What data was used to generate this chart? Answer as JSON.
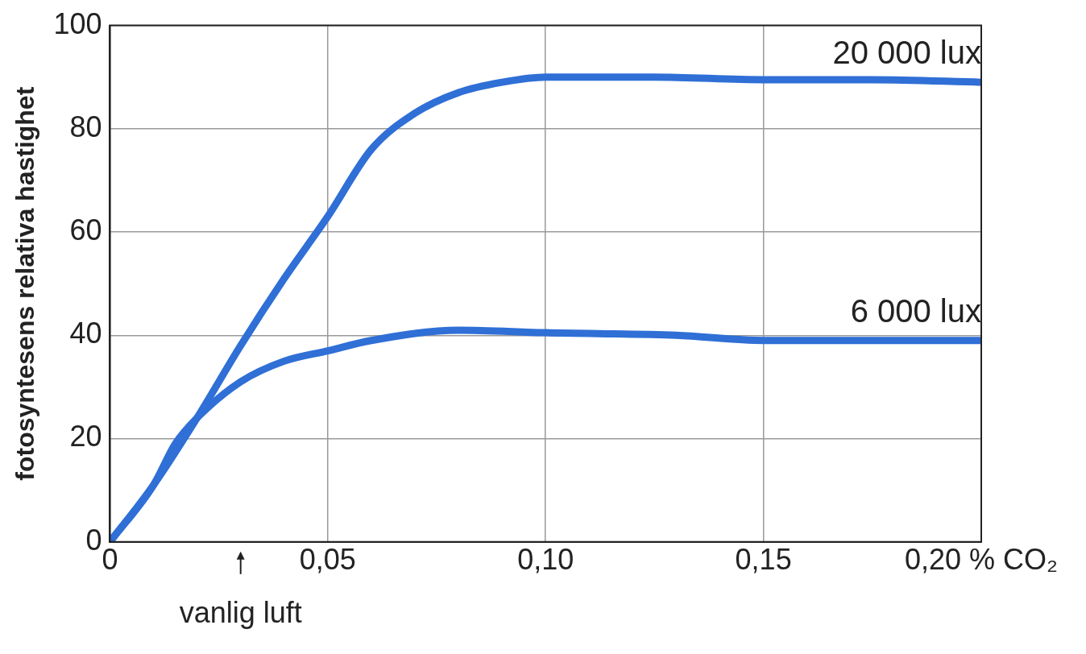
{
  "chart_data": {
    "type": "line",
    "ylabel": "fotosyntesens relativa hastighet",
    "xlim": [
      0,
      0.2
    ],
    "xticks": [
      {
        "value": 0,
        "label": "0"
      },
      {
        "value": 0.05,
        "label": "0,05"
      },
      {
        "value": 0.1,
        "label": "0,10"
      },
      {
        "value": 0.15,
        "label": "0,15"
      },
      {
        "value": 0.2,
        "label": "0,20 % CO₂"
      }
    ],
    "ylim": [
      0,
      100
    ],
    "yticks": [
      0,
      20,
      40,
      60,
      80,
      100
    ],
    "grid": true,
    "legend": false,
    "marker": "none",
    "line_style": "solid",
    "annotations": [
      "vanlig luft"
    ],
    "series": [
      {
        "name": "20 000 lux",
        "color": "#2f6fd6",
        "x": [
          0,
          0.01,
          0.02,
          0.03,
          0.04,
          0.05,
          0.06,
          0.07,
          0.08,
          0.09,
          0.1,
          0.125,
          0.15,
          0.175,
          0.2
        ],
        "values": [
          0,
          11,
          24,
          38,
          51,
          63,
          76,
          83,
          87,
          89,
          90,
          90,
          89.5,
          89.5,
          89
        ]
      },
      {
        "name": "6 000 lux",
        "color": "#2f6fd6",
        "x": [
          0,
          0.01,
          0.015,
          0.02,
          0.03,
          0.04,
          0.05,
          0.06,
          0.08,
          0.1,
          0.13,
          0.15,
          0.2
        ],
        "values": [
          0,
          11,
          19,
          24,
          31,
          35,
          37,
          39,
          41,
          40.5,
          40,
          39,
          39
        ]
      }
    ]
  }
}
